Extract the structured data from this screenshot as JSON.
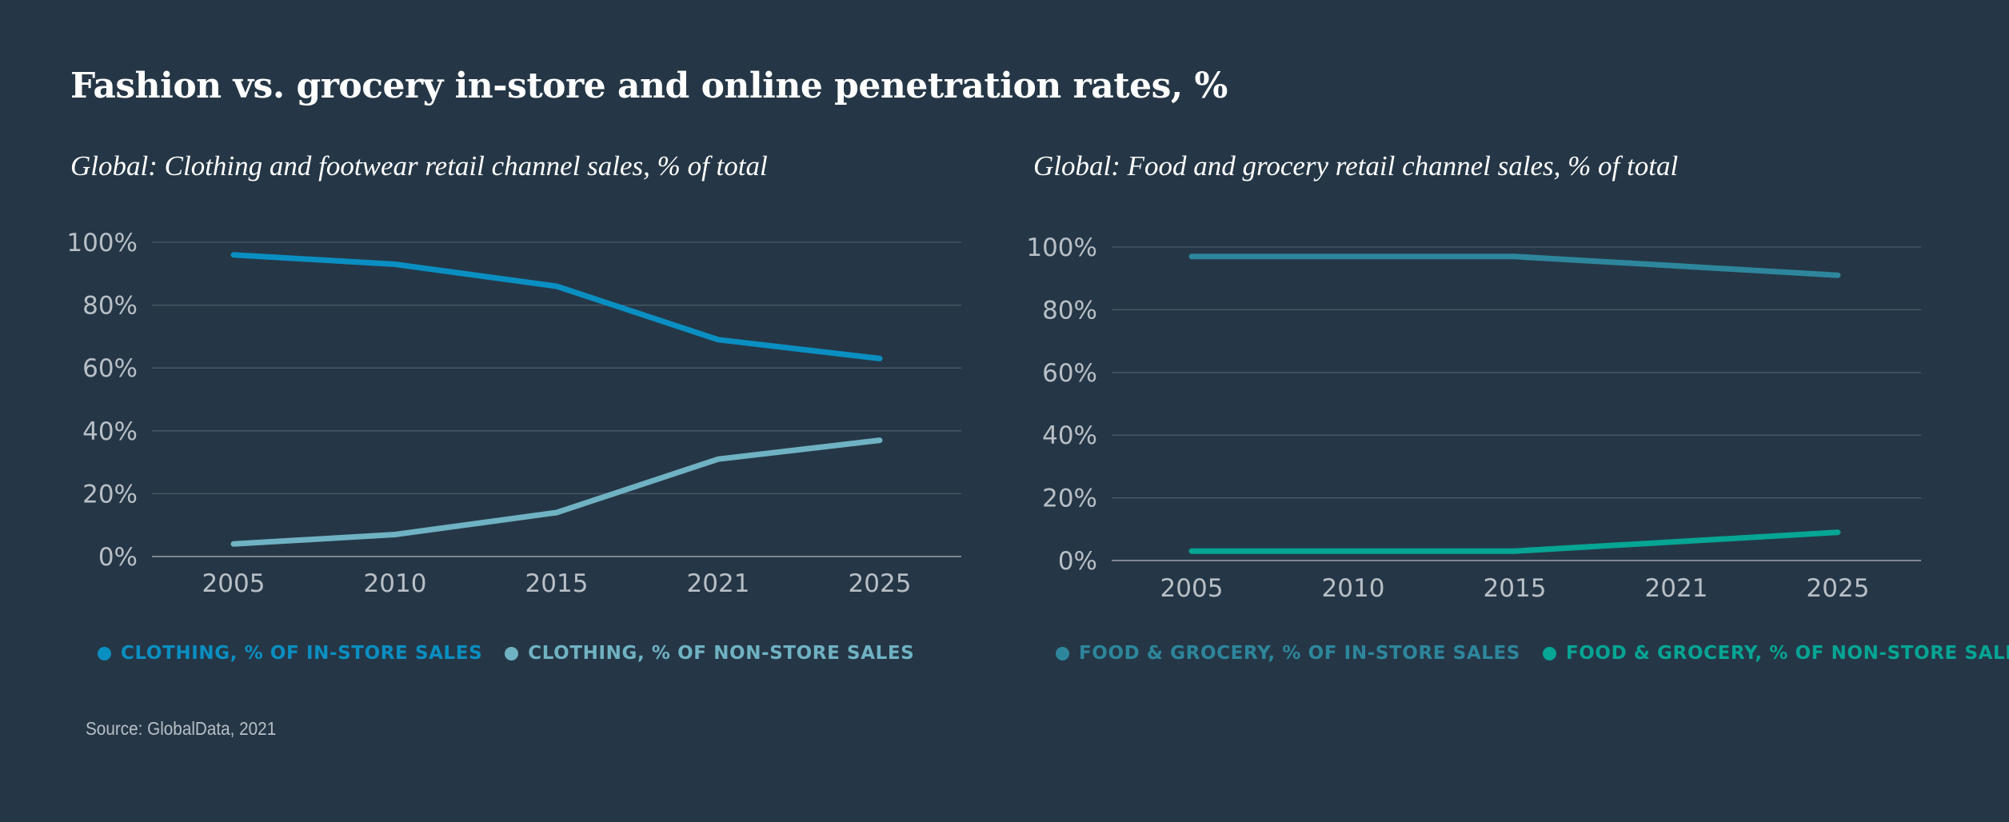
{
  "title": "Fashion vs. grocery in-store and online penetration rates, %",
  "source": "Source: GlobalData, 2021",
  "chart_data": [
    {
      "type": "line",
      "title": "Global: Clothing and footwear retail channel sales, % of total",
      "categories": [
        "2005",
        "2010",
        "2015",
        "2021",
        "2025"
      ],
      "y_ticks": [
        "0%",
        "20%",
        "40%",
        "60%",
        "80%",
        "100%"
      ],
      "ylim": [
        0,
        100
      ],
      "xlabel": "",
      "ylabel": "",
      "grid": true,
      "legend_position": "bottom-left",
      "series": [
        {
          "name": "CLOTHING, % OF IN-STORE SALES",
          "color": "#0a8fc2",
          "values": [
            96,
            93,
            86,
            69,
            63
          ]
        },
        {
          "name": "CLOTHING, % OF NON-STORE SALES",
          "color": "#6fb2c3",
          "values": [
            4,
            7,
            14,
            31,
            37
          ]
        }
      ]
    },
    {
      "type": "line",
      "title": "Global: Food and grocery retail channel sales, % of total",
      "categories": [
        "2005",
        "2010",
        "2015",
        "2021",
        "2025"
      ],
      "y_ticks": [
        "0%",
        "20%",
        "40%",
        "60%",
        "80%",
        "100%"
      ],
      "ylim": [
        0,
        100
      ],
      "xlabel": "",
      "ylabel": "",
      "grid": true,
      "legend_position": "bottom-left",
      "series": [
        {
          "name": "FOOD & GROCERY, % OF IN-STORE SALES",
          "color": "#2d869c",
          "values": [
            97,
            97,
            97,
            94,
            91
          ]
        },
        {
          "name": "FOOD & GROCERY, % OF NON-STORE SALES",
          "color": "#06a594",
          "values": [
            3,
            3,
            3,
            6,
            9
          ]
        }
      ]
    }
  ]
}
